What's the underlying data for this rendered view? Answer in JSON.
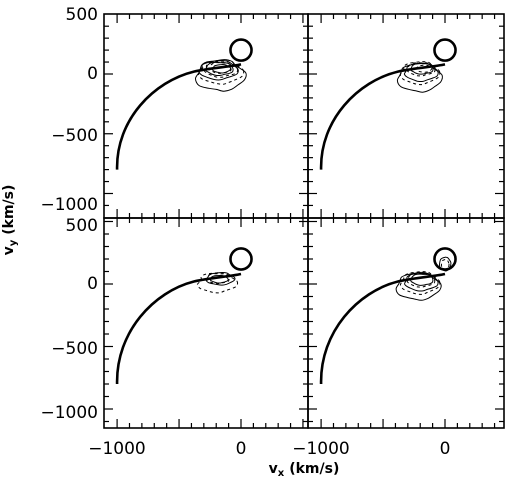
{
  "figure": {
    "xlabel_main": "v",
    "xlabel_sub": "x",
    "xlabel_units": "(km/s)",
    "ylabel_main": "v",
    "ylabel_sub": "y",
    "ylabel_units": "(km/s)"
  },
  "chart_data": {
    "type": "contour",
    "layout": "2x2 grid of panels sharing axes",
    "xlim": [
      -1100,
      500
    ],
    "ylim": [
      -1100,
      500
    ],
    "x_tick_labels": [
      "−1000",
      "0"
    ],
    "y_tick_labels": [
      "500",
      "0",
      "−500",
      "−1000"
    ],
    "grid": false,
    "panels": [
      {
        "position": "top-left",
        "curve_end": [
          -1000,
          -800
        ],
        "circle_center": [
          0,
          200
        ],
        "circle_radius": 85
      },
      {
        "position": "top-right",
        "curve_end": [
          -1000,
          -800
        ],
        "circle_center": [
          0,
          200
        ],
        "circle_radius": 85
      },
      {
        "position": "bottom-left",
        "curve_end": [
          -1000,
          -800
        ],
        "circle_center": [
          0,
          200
        ],
        "circle_radius": 85
      },
      {
        "position": "bottom-right",
        "curve_end": [
          -1000,
          -800
        ],
        "circle_center": [
          0,
          200
        ],
        "circle_radius": 85
      }
    ]
  }
}
